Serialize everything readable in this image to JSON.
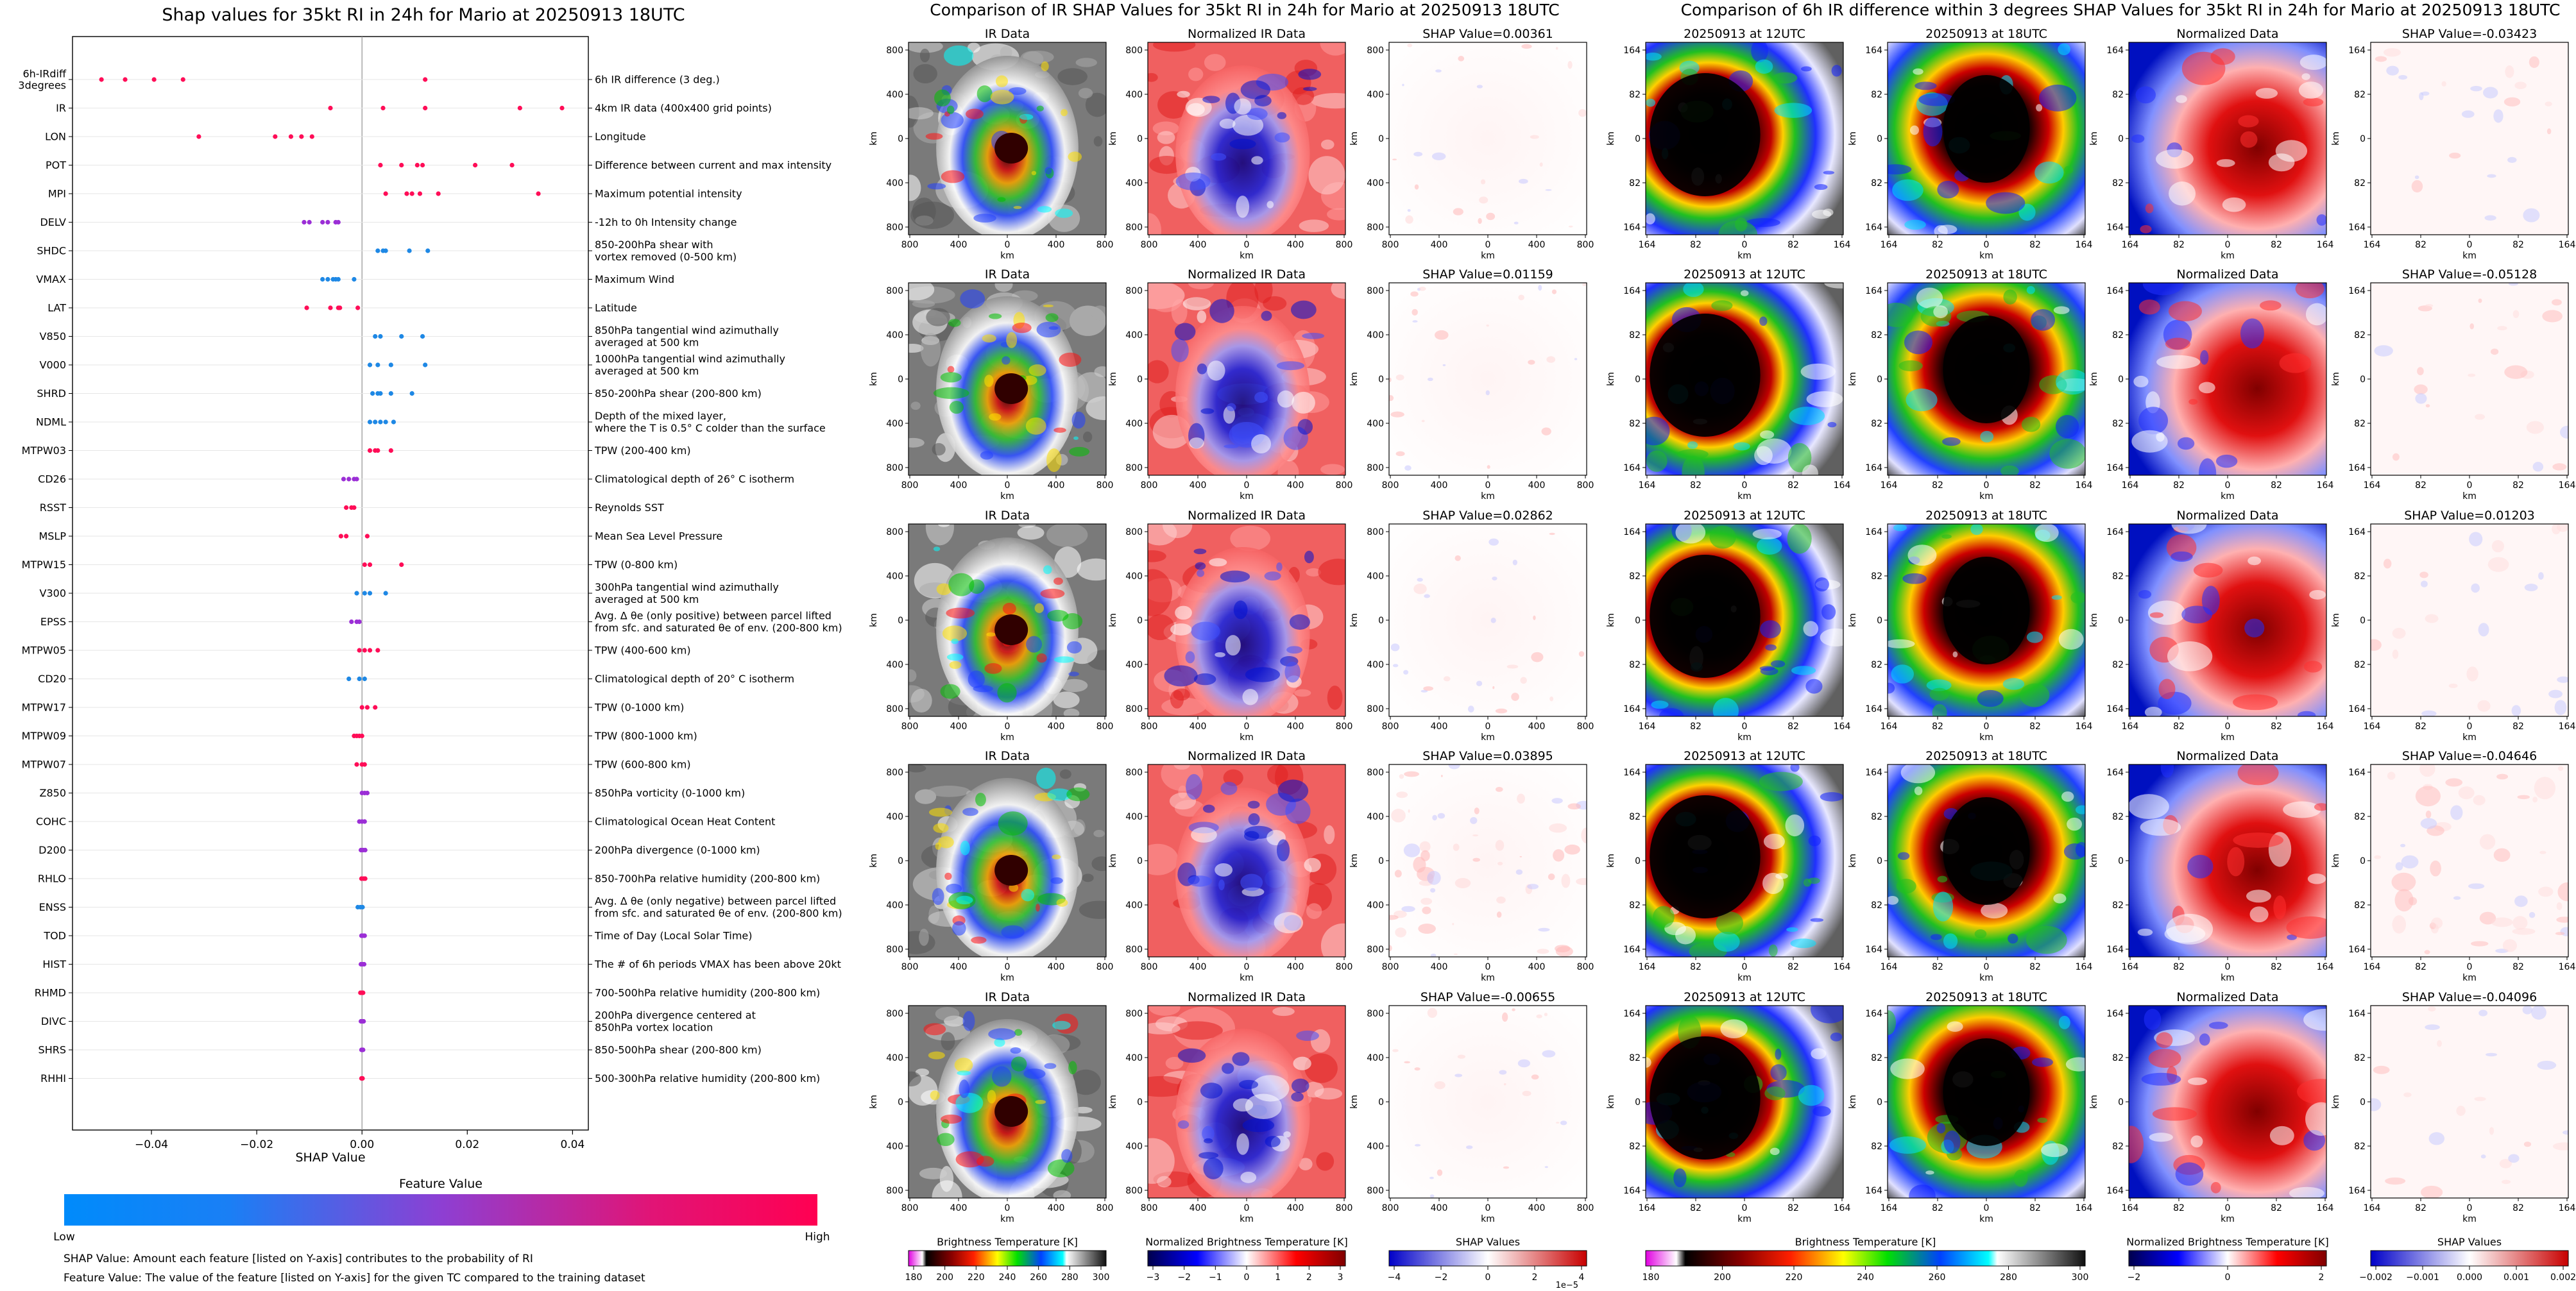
{
  "summary": {
    "title": "Shap values for 35kt RI in 24h for Mario at 20250913 18UTC",
    "xlabel": "SHAP Value",
    "xticks": [
      "−0.04",
      "−0.02",
      "0.00",
      "0.02",
      "0.04"
    ],
    "colorbar_title": "Feature Value",
    "low_label": "Low",
    "high_label": "High",
    "note1": "SHAP Value: Amount each feature [listed on Y-axis] contributes to the probability of RI",
    "note2": "Feature Value: The value of the feature [listed on Y-axis] for the given TC compared to the training dataset"
  },
  "chart_data": [
    {
      "type": "scatter",
      "title": "Shap values for 35kt RI in 24h for Mario at 20250913 18UTC",
      "xlabel": "SHAP Value",
      "xlim": [
        -0.055,
        0.043
      ],
      "features": [
        {
          "code": "6h-IRdiff\n3degrees",
          "desc": "6h IR difference (3 deg.)",
          "color": "magenta",
          "points": [
            -0.0495,
            -0.045,
            -0.0395,
            -0.034,
            0.012
          ]
        },
        {
          "code": "IR",
          "desc": "4km IR data (400x400 grid points)",
          "color": "magenta",
          "points": [
            -0.006,
            0.004,
            0.012,
            0.03,
            0.038
          ]
        },
        {
          "code": "LON",
          "desc": "Longitude",
          "color": "magenta",
          "points": [
            -0.031,
            -0.0165,
            -0.0135,
            -0.0115,
            -0.0095
          ]
        },
        {
          "code": "POT",
          "desc": "Difference between current and max intensity",
          "color": "magenta",
          "points": [
            0.0035,
            0.0075,
            0.0105,
            0.0115,
            0.0215,
            0.0285
          ]
        },
        {
          "code": "MPI",
          "desc": "Maximum potential intensity",
          "color": "magenta",
          "points": [
            0.0045,
            0.0085,
            0.0095,
            0.011,
            0.0145,
            0.0335
          ]
        },
        {
          "code": "DELV",
          "desc": "-12h to 0h Intensity change",
          "color": "purple",
          "points": [
            -0.011,
            -0.01,
            -0.0075,
            -0.0065,
            -0.005,
            -0.0045
          ]
        },
        {
          "code": "SHDC",
          "desc": "850-200hPa shear with\nvortex removed (0-500 km)",
          "color": "blue",
          "points": [
            0.003,
            0.004,
            0.0045,
            0.009,
            0.0125
          ]
        },
        {
          "code": "VMAX",
          "desc": "Maximum Wind",
          "color": "blue",
          "points": [
            -0.0075,
            -0.0065,
            -0.0055,
            -0.005,
            -0.0045,
            -0.0015
          ]
        },
        {
          "code": "LAT",
          "desc": "Latitude",
          "color": "magenta",
          "points": [
            -0.0105,
            -0.006,
            -0.0045,
            -0.0042,
            -0.0008
          ]
        },
        {
          "code": "V850",
          "desc": "850hPa tangential wind azimuthally\naveraged at 500 km",
          "color": "blue",
          "points": [
            0.0025,
            0.0035,
            0.0075,
            0.0115
          ]
        },
        {
          "code": "V000",
          "desc": "1000hPa tangential wind azimuthally\naveraged at 500 km",
          "color": "blue",
          "points": [
            0.0015,
            0.003,
            0.0055,
            0.012
          ]
        },
        {
          "code": "SHRD",
          "desc": "850-200hPa shear (200-800 km)",
          "color": "blue",
          "points": [
            0.002,
            0.003,
            0.0035,
            0.0055,
            0.0095
          ]
        },
        {
          "code": "NDML",
          "desc": "Depth of the mixed layer,\nwhere the T is 0.5° C colder than the surface",
          "color": "blue",
          "points": [
            0.0015,
            0.0025,
            0.0035,
            0.0045,
            0.006
          ]
        },
        {
          "code": "MTPW03",
          "desc": "TPW (200-400 km)",
          "color": "magenta",
          "points": [
            0.0015,
            0.0025,
            0.003,
            0.0055
          ]
        },
        {
          "code": "CD26",
          "desc": "Climatological depth of 26° C isotherm",
          "color": "purple",
          "points": [
            -0.0035,
            -0.0025,
            -0.0015,
            -0.001
          ]
        },
        {
          "code": "RSST",
          "desc": "Reynolds SST",
          "color": "magenta",
          "points": [
            -0.003,
            -0.002,
            -0.0015
          ]
        },
        {
          "code": "MSLP",
          "desc": "Mean Sea Level Pressure",
          "color": "magenta",
          "points": [
            -0.004,
            -0.003,
            0.001
          ]
        },
        {
          "code": "MTPW15",
          "desc": "TPW (0-800 km)",
          "color": "magenta",
          "points": [
            0.0005,
            0.0015,
            0.0075
          ]
        },
        {
          "code": "V300",
          "desc": "300hPa tangential wind azimuthally\naveraged at 500 km",
          "color": "blue",
          "points": [
            -0.001,
            0.0005,
            0.0015,
            0.0045
          ]
        },
        {
          "code": "EPSS",
          "desc": "Avg. Δ θe (only positive) between parcel lifted\nfrom sfc. and saturated θe of env. (200-800 km)",
          "color": "purple",
          "points": [
            -0.002,
            -0.001,
            -0.0005
          ]
        },
        {
          "code": "MTPW05",
          "desc": "TPW (400-600 km)",
          "color": "magenta",
          "points": [
            -0.0005,
            0.0005,
            0.0015,
            0.003
          ]
        },
        {
          "code": "CD20",
          "desc": "Climatological depth of 20° C isotherm",
          "color": "blue",
          "points": [
            -0.0025,
            -0.0005,
            0.0005
          ]
        },
        {
          "code": "MTPW17",
          "desc": "TPW (0-1000 km)",
          "color": "magenta",
          "points": [
            0.0,
            0.001,
            0.0025
          ]
        },
        {
          "code": "MTPW09",
          "desc": "TPW (800-1000 km)",
          "color": "magenta",
          "points": [
            -0.0015,
            -0.001,
            -0.0005,
            0.0
          ]
        },
        {
          "code": "MTPW07",
          "desc": "TPW (600-800 km)",
          "color": "magenta",
          "points": [
            -0.001,
            0.0,
            0.0005
          ]
        },
        {
          "code": "Z850",
          "desc": "850hPa vorticity (0-1000 km)",
          "color": "purple",
          "points": [
            0.0,
            0.0005,
            0.001
          ]
        },
        {
          "code": "COHC",
          "desc": "Climatological Ocean Heat Content",
          "color": "purple",
          "points": [
            -0.0005,
            0.0,
            0.0005
          ]
        },
        {
          "code": "D200",
          "desc": "200hPa divergence (0-1000 km)",
          "color": "purple",
          "points": [
            -0.0002,
            0.0002,
            0.0006
          ]
        },
        {
          "code": "RHLO",
          "desc": "850-700hPa relative humidity (200-800 km)",
          "color": "magenta",
          "points": [
            -0.0001,
            0.0003,
            0.0006
          ]
        },
        {
          "code": "ENSS",
          "desc": "Avg. Δ θe (only negative) between parcel lifted\nfrom sfc. and saturated θe of env. (200-800 km)",
          "color": "blue",
          "points": [
            -0.0008,
            -0.0003,
            0.0001
          ]
        },
        {
          "code": "TOD",
          "desc": "Time of Day (Local Solar Time)",
          "color": "purple",
          "points": [
            -0.0001,
            0.0002,
            0.0005
          ]
        },
        {
          "code": "HIST",
          "desc": "The # of 6h periods VMAX has been above 20kt",
          "color": "purple",
          "points": [
            -0.0002,
            0.0001,
            0.0004
          ]
        },
        {
          "code": "RHMD",
          "desc": "700-500hPa relative humidity (200-800 km)",
          "color": "magenta",
          "points": [
            -0.0003,
            0.0,
            0.0002
          ]
        },
        {
          "code": "DIVC",
          "desc": "200hPa divergence centered at\n850hPa vortex location",
          "color": "purple",
          "points": [
            -0.0002,
            0.0001,
            0.0003
          ]
        },
        {
          "code": "SHRS",
          "desc": "850-500hPa shear (200-800 km)",
          "color": "purple",
          "points": [
            -0.0001,
            0.0001,
            0.0002
          ]
        },
        {
          "code": "RHHI",
          "desc": "500-300hPa relative humidity (200-800 km)",
          "color": "magenta",
          "points": [
            -0.0001,
            0.0001
          ]
        }
      ]
    },
    {
      "type": "heatmap",
      "title": "Comparison of IR SHAP Values for 35kt RI in 24h for Mario at 20250913 18UTC",
      "panel_titles": [
        "IR Data",
        "Normalized IR Data"
      ],
      "shap_titles": [
        "SHAP Value=0.00361",
        "SHAP Value=0.01159",
        "SHAP Value=0.02862",
        "SHAP Value=0.03895",
        "SHAP Value=-0.00655"
      ],
      "axis_label": "km",
      "yticks": [
        "800",
        "400",
        "0",
        "400",
        "800"
      ],
      "xticks": [
        "800",
        "400",
        "0",
        "400",
        "800"
      ],
      "colorbars": [
        {
          "label": "Brightness Temperature [K]",
          "ticks": [
            "180",
            "200",
            "220",
            "240",
            "260",
            "280",
            "300"
          ]
        },
        {
          "label": "Normalized Brightness Temperature [K]",
          "ticks": [
            "−3",
            "−2",
            "−1",
            "0",
            "1",
            "2",
            "3"
          ]
        },
        {
          "label": "SHAP Values",
          "ticks": [
            "−4",
            "−2",
            "0",
            "2",
            "4"
          ],
          "multiplier": "1e−5"
        }
      ]
    },
    {
      "type": "heatmap",
      "title": "Comparison of 6h IR difference within 3 degrees SHAP Values for 35kt RI in 24h for Mario at 20250913 18UTC",
      "panel_titles": [
        "20250913 at 12UTC",
        "20250913 at 18UTC",
        "Normalized Data"
      ],
      "shap_titles": [
        "SHAP Value=-0.03423",
        "SHAP Value=-0.05128",
        "SHAP Value=0.01203",
        "SHAP Value=-0.04646",
        "SHAP Value=-0.04096"
      ],
      "axis_label": "km",
      "yticks": [
        "164",
        "82",
        "0",
        "82",
        "164"
      ],
      "xticks": [
        "164",
        "82",
        "0",
        "82",
        "164"
      ],
      "colorbars": [
        {
          "label": "Brightness Temperature [K]",
          "ticks": [
            "180",
            "200",
            "220",
            "240",
            "260",
            "280",
            "300"
          ]
        },
        {
          "label": "Normalized Brightness Temperature [K]",
          "ticks": [
            "−2",
            "0",
            "2"
          ]
        },
        {
          "label": "SHAP Values",
          "ticks": [
            "−0.002",
            "−0.001",
            "0.000",
            "0.001",
            "0.002"
          ]
        }
      ]
    }
  ]
}
